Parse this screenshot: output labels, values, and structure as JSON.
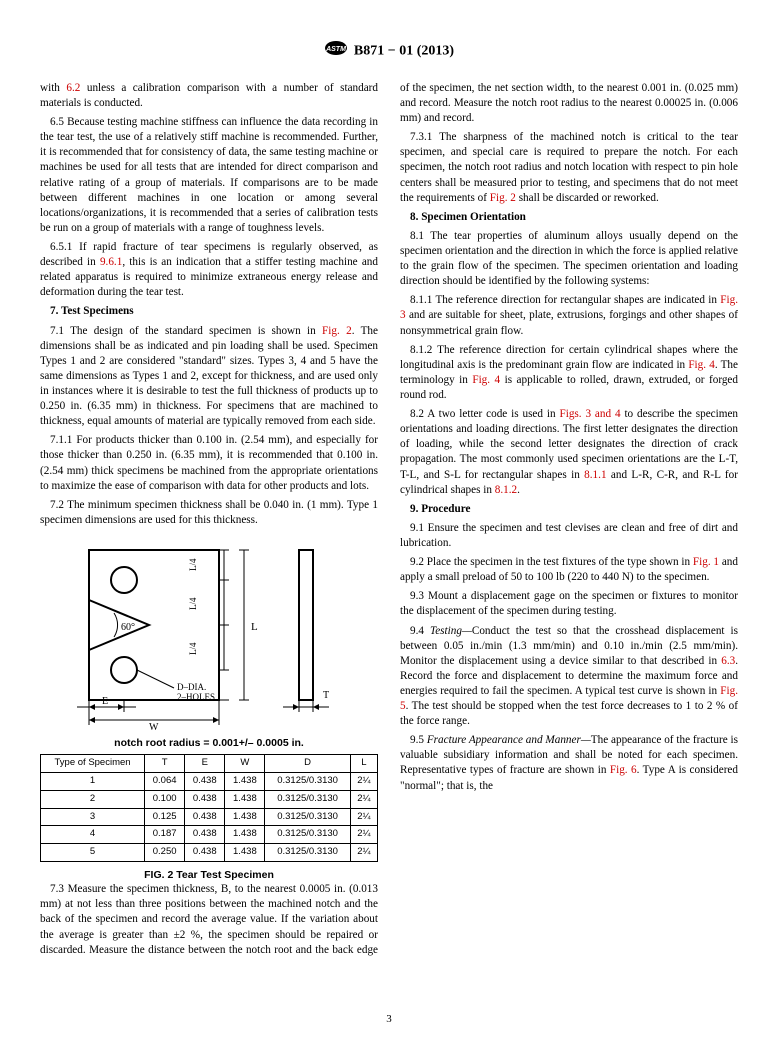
{
  "header": {
    "designation": "B871 − 01 (2013)"
  },
  "left": {
    "p1_a": "with ",
    "p1_ref": "6.2",
    "p1_b": " unless a calibration comparison with a number of standard materials is conducted.",
    "p2": "6.5  Because testing machine stiffness can influence the data recording in the tear test, the use of a relatively stiff machine is recommended. Further, it is recommended that for consistency of data, the same testing machine or machines be used for all tests that are intended for direct comparison and relative rating of a group of materials. If comparisons are to be made between different machines in one location or among several locations/organizations, it is recommended that a series of calibration tests be run on a group of materials with a range of toughness levels.",
    "p3_a": "6.5.1  If rapid fracture of tear specimens is regularly observed, as described in ",
    "p3_ref": "9.6.1",
    "p3_b": ", this is an indication that a stiffer testing machine and related apparatus is required to minimize extraneous energy release and deformation during the tear test.",
    "sec7": "7.  Test Specimens",
    "p4_a": "7.1  The design of the standard specimen is shown in ",
    "p4_ref": "Fig. 2",
    "p4_b": ". The dimensions shall be as indicated and pin loading shall be used. Specimen Types 1 and 2 are considered \"standard\" sizes. Types 3, 4 and 5 have the same dimensions as Types 1 and 2, except for thickness, and are used only in instances where it is desirable to test the full thickness of products up to 0.250 in. (6.35 mm) in thickness. For specimens that are machined to thickness, equal amounts of material are typically removed from each side.",
    "p5": "7.1.1  For products thicker than 0.100 in. (2.54 mm), and especially for those thicker than 0.250 in. (6.35 mm), it is recommended that 0.100 in. (2.54 mm) thick specimens be machined from the appropriate orientations to maximize the ease of comparison with data for other products and lots.",
    "p6": "7.2  The minimum specimen thickness shall be 0.040 in. (1 mm). Type 1 specimen dimensions are used for this thickness."
  },
  "right": {
    "p1": "7.3  Measure the specimen thickness, B, to the nearest 0.0005 in. (0.013 mm) at not less than three positions between the machined notch and the back of the specimen and record the average value. If the variation about the average is greater than ±2 %, the specimen should be repaired or discarded. Measure the distance between the notch root and the back edge of the specimen, the net section width, to the nearest 0.001 in. (0.025 mm) and record. Measure the notch root radius to the nearest 0.00025 in. (0.006 mm) and record.",
    "p2_a": "7.3.1  The sharpness of the machined notch is critical to the tear specimen, and special care is required to prepare the notch. For each specimen, the notch root radius and notch location with respect to pin hole centers shall be measured prior to testing, and specimens that do not meet the requirements of ",
    "p2_ref": "Fig. 2",
    "p2_b": " shall be discarded or reworked.",
    "sec8": "8.  Specimen Orientation",
    "p3": "8.1  The tear properties of aluminum alloys usually depend on the specimen orientation and the direction in which the force is applied relative to the grain flow of the specimen. The specimen orientation and loading direction should be identified by the following systems:",
    "p4_a": "8.1.1  The reference direction for rectangular shapes are indicated in ",
    "p4_ref": "Fig. 3",
    "p4_b": " and are suitable for sheet, plate, extrusions, forgings and other shapes of nonsymmetrical grain flow.",
    "p5_a": "8.1.2  The reference direction for certain cylindrical shapes where the longitudinal axis is the predominant grain flow are indicated in ",
    "p5_ref1": "Fig. 4",
    "p5_b": ". The terminology in ",
    "p5_ref2": "Fig. 4",
    "p5_c": " is applicable to rolled, drawn, extruded, or forged round rod.",
    "p6_a": "8.2  A two letter code is used in ",
    "p6_ref1": "Figs. 3 and 4",
    "p6_b": " to describe the specimen orientations and loading directions. The first letter designates the direction of loading, while the second letter designates the direction of crack propagation. The most commonly used specimen orientations are the L-T, T-L, and S-L for rectangular shapes in ",
    "p6_ref2": "8.1.1",
    "p6_c": " and L-R, C-R, and R-L for cylindrical shapes in ",
    "p6_ref3": "8.1.2",
    "p6_d": ".",
    "sec9": "9.  Procedure",
    "p7": "9.1  Ensure the specimen and test clevises are clean and free of dirt and lubrication.",
    "p8_a": "9.2  Place the specimen in the test fixtures of the type shown in ",
    "p8_ref": "Fig. 1",
    "p8_b": " and apply a small preload of 50 to 100 lb (220 to 440 N) to the specimen.",
    "p9": "9.3  Mount a displacement gage on the specimen or fixtures to monitor the displacement of the specimen during testing.",
    "p10_a": "9.4  ",
    "p10_it": "Testing—",
    "p10_b": "Conduct the test so that the crosshead displacement is between 0.05 in./min (1.3 mm/min) and 0.10 in./min (2.5 mm/min). Monitor the displacement using a device similar to that described in ",
    "p10_ref1": "6.3",
    "p10_c": ". Record the force and displacement to determine the maximum force and energies required to fail the specimen. A typical test curve is shown in ",
    "p10_ref2": "Fig. 5",
    "p10_d": ". The test should be stopped when the test force decreases to 1 to 2 % of the force range.",
    "p11_a": "9.5  ",
    "p11_it": "Fracture Appearance and Manner—",
    "p11_b": "The appearance of the fracture is valuable subsidiary information and shall be noted for each specimen. Representative types of fracture are shown in ",
    "p11_ref": "Fig. 6",
    "p11_c": ". Type A is considered \"normal\"; that is, the"
  },
  "figure": {
    "angle": "60°",
    "l4_top": "L/4",
    "l4_mid": "L/4",
    "l4_bot": "L/4",
    "L": "L",
    "E": "E",
    "W": "W",
    "T": "T",
    "D": "D–DIA.\n2–HOLES",
    "sub_caption": "notch root radius = 0.001+/– 0.0005 in.",
    "caption": "FIG. 2  Tear Test Specimen",
    "table": {
      "headers": [
        "Type of Specimen",
        "T",
        "E",
        "W",
        "D",
        "L"
      ],
      "rows": [
        [
          "1",
          "0.064",
          "0.438",
          "1.438",
          "0.3125/0.3130",
          "2¼"
        ],
        [
          "2",
          "0.100",
          "0.438",
          "1.438",
          "0.3125/0.3130",
          "2¼"
        ],
        [
          "3",
          "0.125",
          "0.438",
          "1.438",
          "0.3125/0.3130",
          "2¼"
        ],
        [
          "4",
          "0.187",
          "0.438",
          "1.438",
          "0.3125/0.3130",
          "2¼"
        ],
        [
          "5",
          "0.250",
          "0.438",
          "1.438",
          "0.3125/0.3130",
          "2¼"
        ]
      ]
    }
  },
  "page_num": "3",
  "style": {
    "ref_color": "#cc0000",
    "body_font_size": 11.2,
    "sans_font_size": 10.5,
    "table_font_size": 9.5
  }
}
